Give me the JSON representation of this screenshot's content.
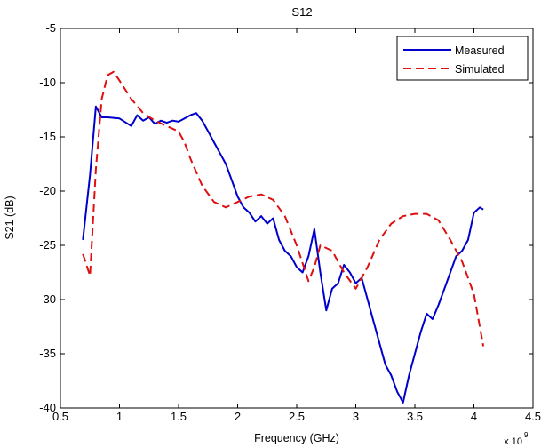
{
  "chart_data": {
    "type": "line",
    "title": "S12",
    "xlabel": "Frequency (GHz)",
    "ylabel": "S21 (dB)",
    "xlim": [
      0.5,
      4.5
    ],
    "ylim": [
      -40,
      -5
    ],
    "x_ticks": [
      "0.5",
      "1",
      "1.5",
      "2",
      "2.5",
      "3",
      "3.5",
      "4",
      "4.5"
    ],
    "y_ticks": [
      "-5",
      "-10",
      "-15",
      "-20",
      "-25",
      "-30",
      "-35",
      "-40"
    ],
    "x_multiplier": {
      "base": "x 10",
      "exponent": "9"
    },
    "grid": false,
    "legend_position": "top-right",
    "series": [
      {
        "name": "Measured",
        "color": "#0000cc",
        "style": "solid",
        "x": [
          0.69,
          0.75,
          0.8,
          0.85,
          0.9,
          1.0,
          1.1,
          1.15,
          1.2,
          1.25,
          1.3,
          1.35,
          1.4,
          1.45,
          1.5,
          1.55,
          1.6,
          1.65,
          1.7,
          1.75,
          1.8,
          1.85,
          1.9,
          1.95,
          2.0,
          2.05,
          2.1,
          2.15,
          2.2,
          2.25,
          2.3,
          2.35,
          2.4,
          2.45,
          2.5,
          2.55,
          2.6,
          2.65,
          2.7,
          2.75,
          2.8,
          2.85,
          2.9,
          2.95,
          3.0,
          3.05,
          3.1,
          3.15,
          3.2,
          3.25,
          3.3,
          3.35,
          3.4,
          3.45,
          3.5,
          3.55,
          3.6,
          3.65,
          3.7,
          3.75,
          3.8,
          3.85,
          3.9,
          3.95,
          4.0,
          4.05,
          4.08
        ],
        "y": [
          -24.5,
          -18.5,
          -12.2,
          -13.2,
          -13.2,
          -13.3,
          -14.0,
          -13.0,
          -13.5,
          -13.2,
          -13.8,
          -13.5,
          -13.7,
          -13.5,
          -13.6,
          -13.3,
          -13.0,
          -12.8,
          -13.5,
          -14.5,
          -15.5,
          -16.5,
          -17.5,
          -19.0,
          -20.5,
          -21.5,
          -22.0,
          -22.8,
          -22.3,
          -23.0,
          -22.5,
          -24.5,
          -25.5,
          -26.0,
          -27.0,
          -27.5,
          -26.0,
          -23.5,
          -27.5,
          -31.0,
          -29.0,
          -28.5,
          -26.8,
          -27.5,
          -28.5,
          -28.0,
          -30.0,
          -32.0,
          -34.0,
          -36.0,
          -37.0,
          -38.5,
          -39.5,
          -37.0,
          -35.0,
          -33.0,
          -31.3,
          -31.8,
          -30.5,
          -29.0,
          -27.5,
          -26.0,
          -25.5,
          -24.5,
          -22.0,
          -21.5,
          -21.7
        ]
      },
      {
        "name": "Simulated",
        "color": "#dd1111",
        "style": "dashed",
        "x": [
          0.69,
          0.75,
          0.8,
          0.85,
          0.9,
          0.95,
          1.0,
          1.1,
          1.2,
          1.3,
          1.4,
          1.5,
          1.55,
          1.6,
          1.7,
          1.8,
          1.9,
          2.0,
          2.1,
          2.2,
          2.3,
          2.4,
          2.5,
          2.6,
          2.65,
          2.7,
          2.8,
          2.9,
          3.0,
          3.1,
          3.2,
          3.3,
          3.4,
          3.5,
          3.6,
          3.7,
          3.8,
          3.9,
          4.0,
          4.08
        ],
        "y": [
          -25.8,
          -27.8,
          -18.0,
          -11.5,
          -9.3,
          -9.0,
          -9.8,
          -11.5,
          -12.8,
          -13.5,
          -14.0,
          -14.5,
          -15.5,
          -17.0,
          -19.5,
          -21.0,
          -21.5,
          -21.0,
          -20.5,
          -20.3,
          -20.8,
          -22.3,
          -25.0,
          -28.3,
          -27.0,
          -25.0,
          -25.5,
          -27.5,
          -29.0,
          -27.0,
          -24.5,
          -23.0,
          -22.3,
          -22.1,
          -22.1,
          -22.7,
          -24.5,
          -26.5,
          -29.5,
          -34.3
        ]
      }
    ]
  }
}
